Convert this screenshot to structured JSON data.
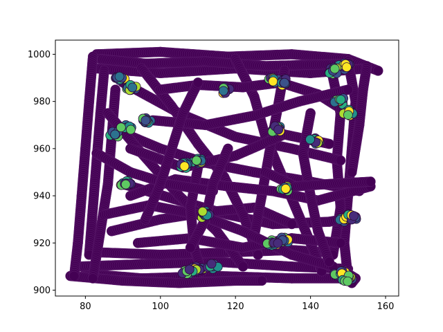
{
  "chart_data": {
    "type": "scatter",
    "title": "",
    "xlabel": "",
    "ylabel": "",
    "xlim": [
      72,
      163.5
    ],
    "ylim": [
      897.5,
      1006
    ],
    "xticks": [
      80,
      100,
      120,
      140,
      160
    ],
    "yticks": [
      900,
      920,
      940,
      960,
      980,
      1000
    ],
    "xtick_labels": [
      "80",
      "100",
      "120",
      "140",
      "160"
    ],
    "ytick_labels": [
      "900",
      "920",
      "940",
      "960",
      "980",
      "1000"
    ],
    "grid": false,
    "legend": "none",
    "colormap": "viridis",
    "base_color": "#440154",
    "paths": [
      [
        [
          83,
          1000
        ],
        [
          100,
          1001
        ],
        [
          118,
          999
        ],
        [
          135,
          1000
        ],
        [
          150,
          998
        ],
        [
          158,
          993
        ]
      ],
      [
        [
          83,
          994
        ],
        [
          100,
          992
        ],
        [
          120,
          994
        ],
        [
          140,
          992
        ],
        [
          155,
          994
        ]
      ],
      [
        [
          84,
          998
        ],
        [
          96,
          996
        ],
        [
          112,
          997
        ],
        [
          128,
          995
        ],
        [
          150,
          996
        ]
      ],
      [
        [
          80,
          907
        ],
        [
          95,
          905
        ],
        [
          115,
          906
        ],
        [
          135,
          905
        ],
        [
          150,
          905
        ]
      ],
      [
        [
          78,
          910
        ],
        [
          95,
          911
        ],
        [
          115,
          912
        ],
        [
          135,
          910
        ],
        [
          150,
          909
        ]
      ],
      [
        [
          76,
          906
        ],
        [
          90,
          904
        ],
        [
          105,
          903
        ],
        [
          120,
          904
        ],
        [
          127,
          904
        ]
      ],
      [
        [
          84,
          916
        ],
        [
          100,
          915
        ],
        [
          118,
          916
        ],
        [
          135,
          917
        ],
        [
          145,
          916
        ]
      ],
      [
        [
          82,
          999
        ],
        [
          81,
          980
        ],
        [
          80,
          960
        ],
        [
          79,
          940
        ],
        [
          78,
          920
        ],
        [
          77,
          906
        ]
      ],
      [
        [
          85,
          993
        ],
        [
          84,
          975
        ],
        [
          83,
          955
        ],
        [
          82,
          935
        ],
        [
          81,
          915
        ]
      ],
      [
        [
          88,
          985
        ],
        [
          87,
          965
        ],
        [
          86,
          945
        ],
        [
          84,
          925
        ],
        [
          82,
          905
        ]
      ],
      [
        [
          150,
          997
        ],
        [
          152,
          980
        ],
        [
          151,
          960
        ],
        [
          150,
          940
        ],
        [
          149,
          920
        ],
        [
          150,
          905
        ]
      ],
      [
        [
          146,
          990
        ],
        [
          148,
          975
        ],
        [
          147,
          955
        ],
        [
          148,
          935
        ],
        [
          146,
          915
        ]
      ],
      [
        [
          155,
          995
        ],
        [
          154,
          985
        ],
        [
          153,
          970
        ],
        [
          151,
          950
        ]
      ],
      [
        [
          90,
          988
        ],
        [
          105,
          975
        ],
        [
          120,
          965
        ],
        [
          135,
          960
        ],
        [
          148,
          955
        ]
      ],
      [
        [
          88,
          968
        ],
        [
          100,
          960
        ],
        [
          112,
          954
        ],
        [
          125,
          950
        ],
        [
          140,
          946
        ],
        [
          153,
          942
        ]
      ],
      [
        [
          90,
          945
        ],
        [
          105,
          938
        ],
        [
          118,
          932
        ],
        [
          130,
          928
        ],
        [
          145,
          929
        ],
        [
          152,
          931
        ]
      ],
      [
        [
          87,
          925
        ],
        [
          100,
          930
        ],
        [
          112,
          933
        ],
        [
          125,
          935
        ],
        [
          135,
          928
        ]
      ],
      [
        [
          86,
          975
        ],
        [
          95,
          958
        ],
        [
          105,
          940
        ],
        [
          115,
          925
        ],
        [
          122,
          910
        ]
      ],
      [
        [
          95,
          994
        ],
        [
          103,
          978
        ],
        [
          110,
          962
        ],
        [
          117,
          948
        ],
        [
          122,
          932
        ],
        [
          126,
          915
        ]
      ],
      [
        [
          120,
          998
        ],
        [
          125,
          982
        ],
        [
          128,
          965
        ],
        [
          132,
          950
        ],
        [
          136,
          935
        ],
        [
          140,
          920
        ],
        [
          143,
          908
        ]
      ],
      [
        [
          133,
          993
        ],
        [
          131,
          975
        ],
        [
          129,
          958
        ],
        [
          127,
          940
        ],
        [
          125,
          923
        ]
      ],
      [
        [
          100,
          985
        ],
        [
          110,
          987
        ],
        [
          122,
          986
        ],
        [
          132,
          988
        ],
        [
          142,
          983
        ],
        [
          150,
          975
        ]
      ],
      [
        [
          92,
          960
        ],
        [
          106,
          952
        ],
        [
          120,
          957
        ],
        [
          133,
          966
        ],
        [
          145,
          962
        ]
      ],
      [
        [
          92,
          940
        ],
        [
          104,
          947
        ],
        [
          118,
          944
        ],
        [
          130,
          942
        ],
        [
          142,
          938
        ],
        [
          156,
          944
        ]
      ],
      [
        [
          94,
          920
        ],
        [
          108,
          922
        ],
        [
          122,
          918
        ],
        [
          135,
          922
        ],
        [
          148,
          920
        ]
      ],
      [
        [
          85,
          932
        ],
        [
          97,
          936
        ],
        [
          110,
          932
        ],
        [
          122,
          925
        ],
        [
          135,
          915
        ],
        [
          146,
          910
        ]
      ],
      [
        [
          110,
          952
        ],
        [
          108,
          935
        ],
        [
          109,
          918
        ],
        [
          111,
          908
        ]
      ],
      [
        [
          140,
          975
        ],
        [
          138,
          958
        ],
        [
          140,
          940
        ],
        [
          142,
          925
        ],
        [
          145,
          912
        ]
      ],
      [
        [
          98,
          972
        ],
        [
          112,
          970
        ],
        [
          125,
          974
        ],
        [
          137,
          980
        ],
        [
          150,
          985
        ]
      ],
      [
        [
          83,
          958
        ],
        [
          92,
          950
        ],
        [
          102,
          945
        ],
        [
          114,
          942
        ]
      ],
      [
        [
          96,
          930
        ],
        [
          100,
          945
        ],
        [
          103,
          960
        ],
        [
          106,
          975
        ],
        [
          110,
          988
        ]
      ],
      [
        [
          118,
          960
        ],
        [
          114,
          945
        ],
        [
          112,
          930
        ],
        [
          108,
          918
        ]
      ],
      [
        [
          128,
          950
        ],
        [
          136,
          944
        ],
        [
          145,
          945
        ],
        [
          156,
          946
        ]
      ],
      [
        [
          149,
          908
        ],
        [
          152,
          905
        ],
        [
          151,
          903
        ]
      ]
    ],
    "hotspots": [
      [
        89,
        990
      ],
      [
        92,
        986
      ],
      [
        88,
        966
      ],
      [
        91,
        969
      ],
      [
        91,
        945
      ],
      [
        110,
        955
      ],
      [
        106,
        953
      ],
      [
        112,
        932
      ],
      [
        110,
        909
      ],
      [
        114,
        910
      ],
      [
        107,
        908
      ],
      [
        130,
        989
      ],
      [
        133,
        988
      ],
      [
        131,
        968
      ],
      [
        133,
        943
      ],
      [
        133,
        921
      ],
      [
        130,
        920
      ],
      [
        149,
        930
      ],
      [
        151,
        931
      ],
      [
        148,
        907
      ],
      [
        150,
        905
      ],
      [
        149,
        995
      ],
      [
        146,
        993
      ],
      [
        148,
        980
      ],
      [
        150,
        975
      ],
      [
        141,
        963
      ],
      [
        96,
        972
      ],
      [
        117,
        985
      ]
    ]
  }
}
